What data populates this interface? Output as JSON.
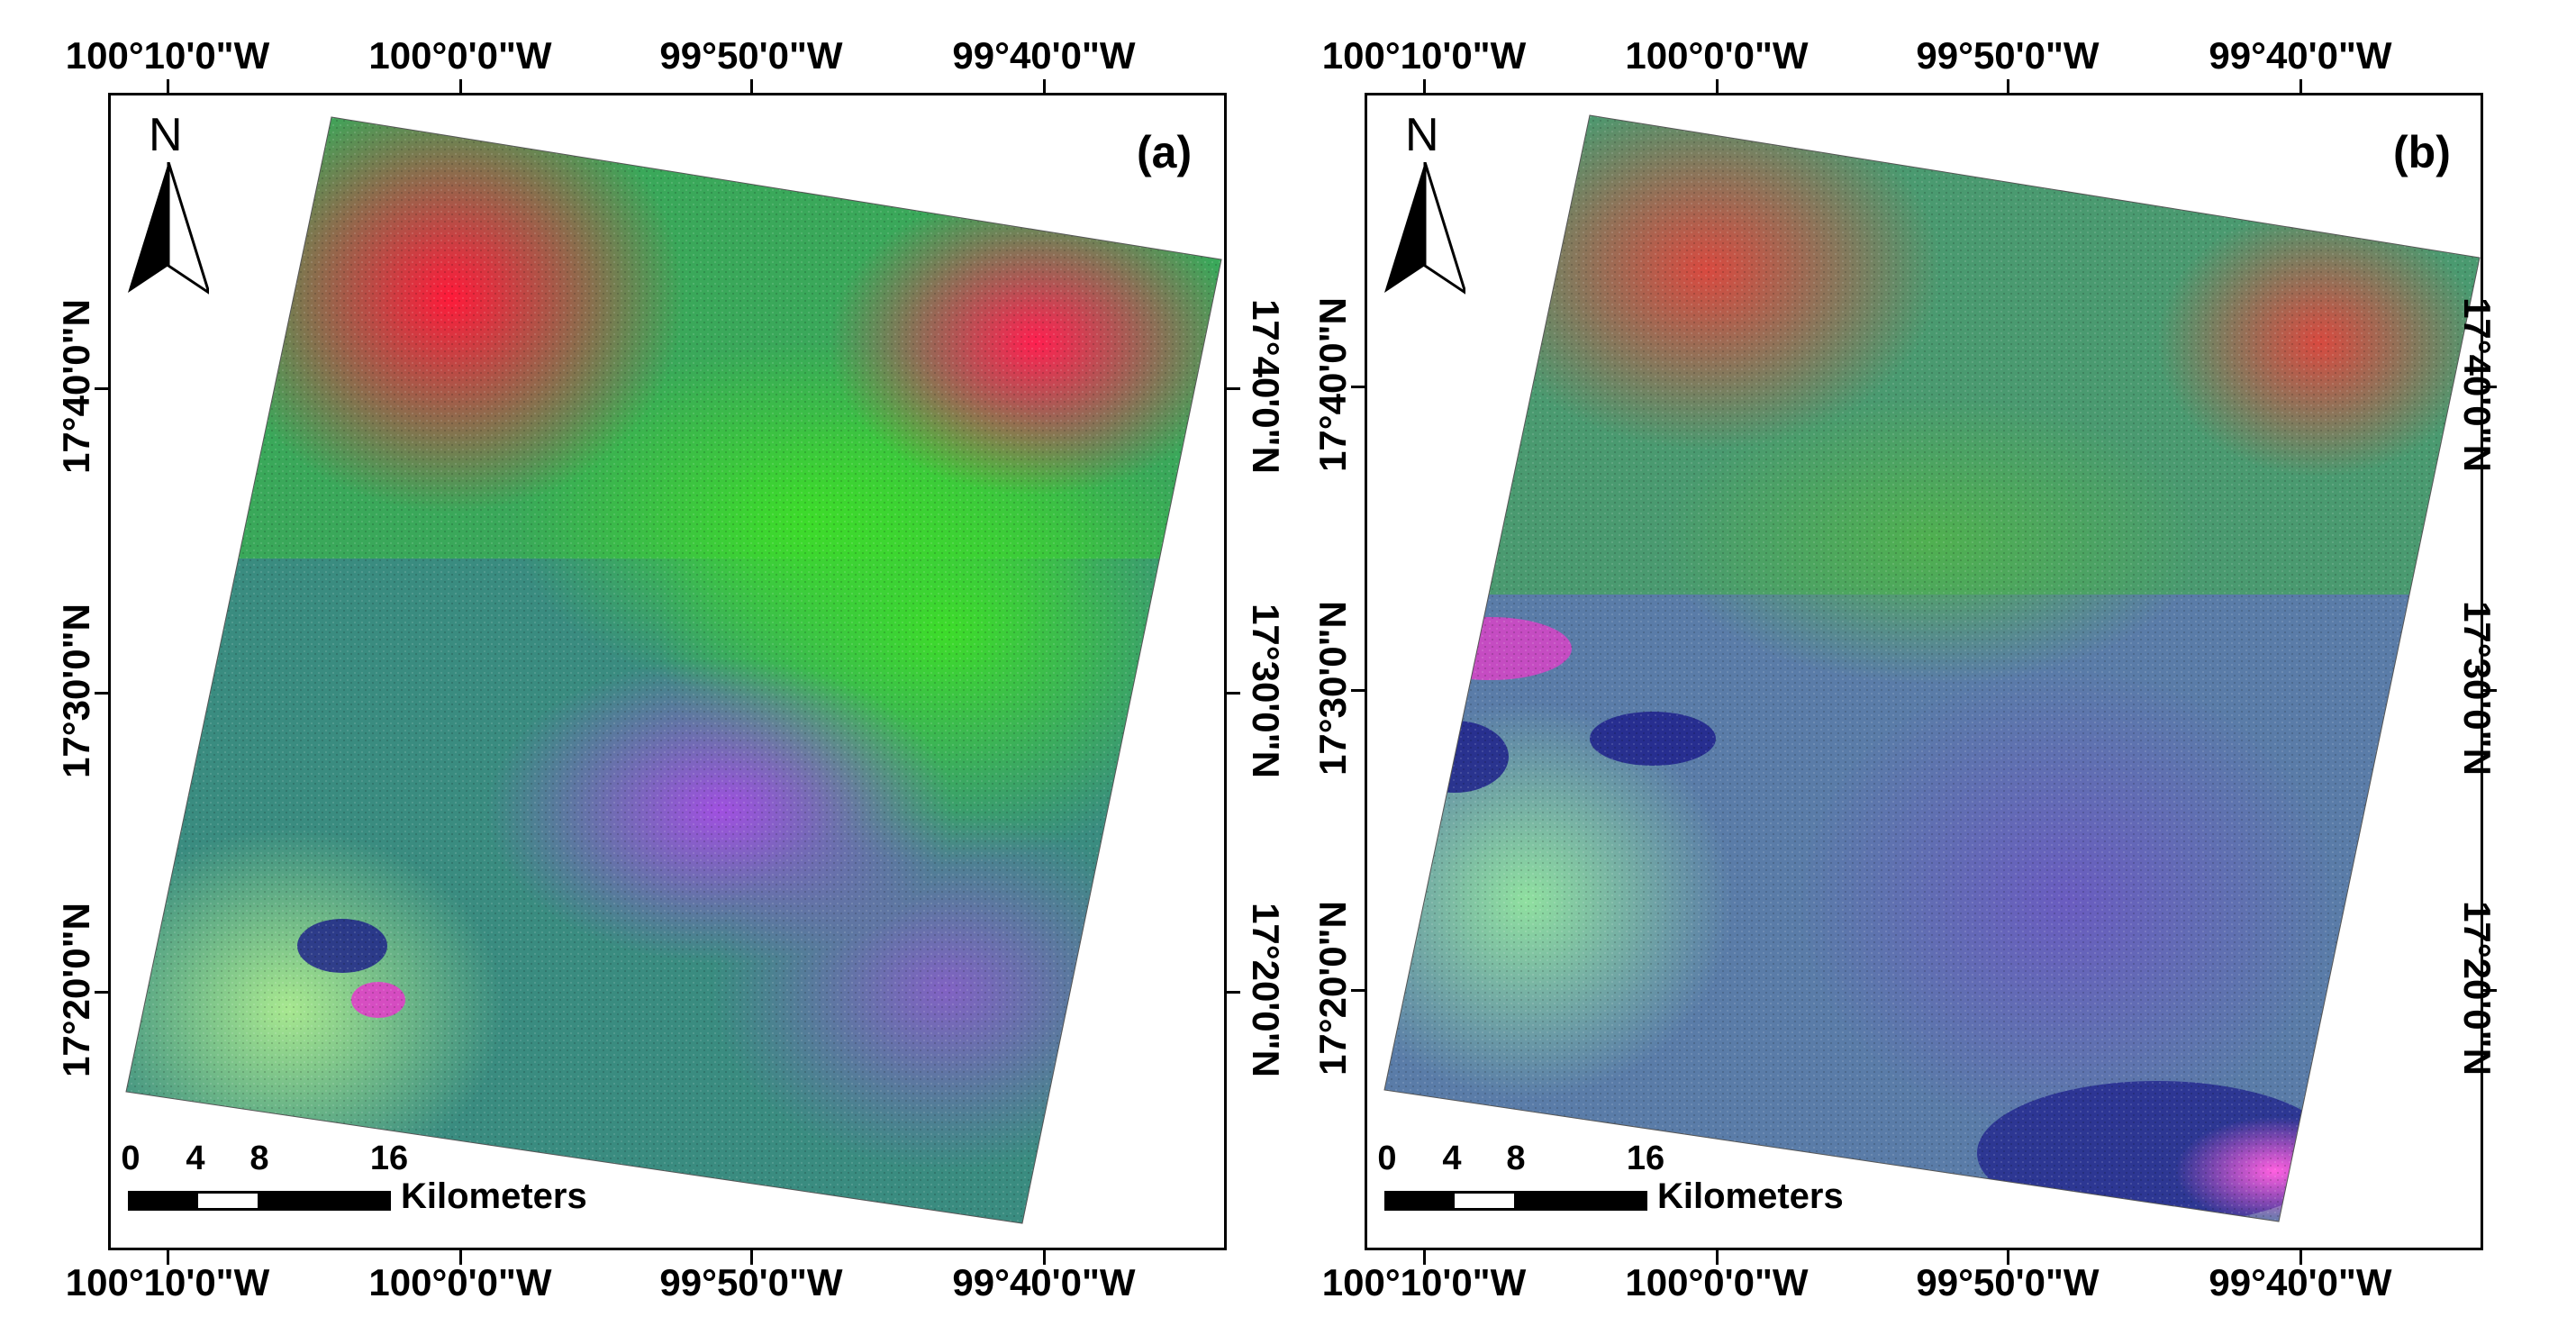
{
  "panels": [
    {
      "label": "(a)",
      "north_label": "N",
      "lon_labels": [
        "100°10'0\"W",
        "100°0'0\"W",
        "99°50'0\"W",
        "99°40'0\"W"
      ],
      "lat_labels": [
        "17°40'0\"N",
        "17°30'0\"N",
        "17°20'0\"N"
      ],
      "scale_ticks": [
        "0",
        "4",
        "8",
        "16"
      ],
      "scale_unit": "Kilometers"
    },
    {
      "label": "(b)",
      "north_label": "N",
      "lon_labels": [
        "100°10'0\"W",
        "100°0'0\"W",
        "99°50'0\"W",
        "99°40'0\"W"
      ],
      "lat_labels": [
        "17°40'0\"N",
        "17°30'0\"N",
        "17°20'0\"N"
      ],
      "scale_ticks": [
        "0",
        "4",
        "8",
        "16"
      ],
      "scale_unit": "Kilometers"
    }
  ],
  "colors": {
    "vegetation_green": "#3fbf3a",
    "bare_red": "#e8243a",
    "magenta": "#e040c8",
    "blue_purple": "#6a5cc0",
    "dark_blue": "#1a1a8a",
    "teal": "#3a9a8a"
  }
}
